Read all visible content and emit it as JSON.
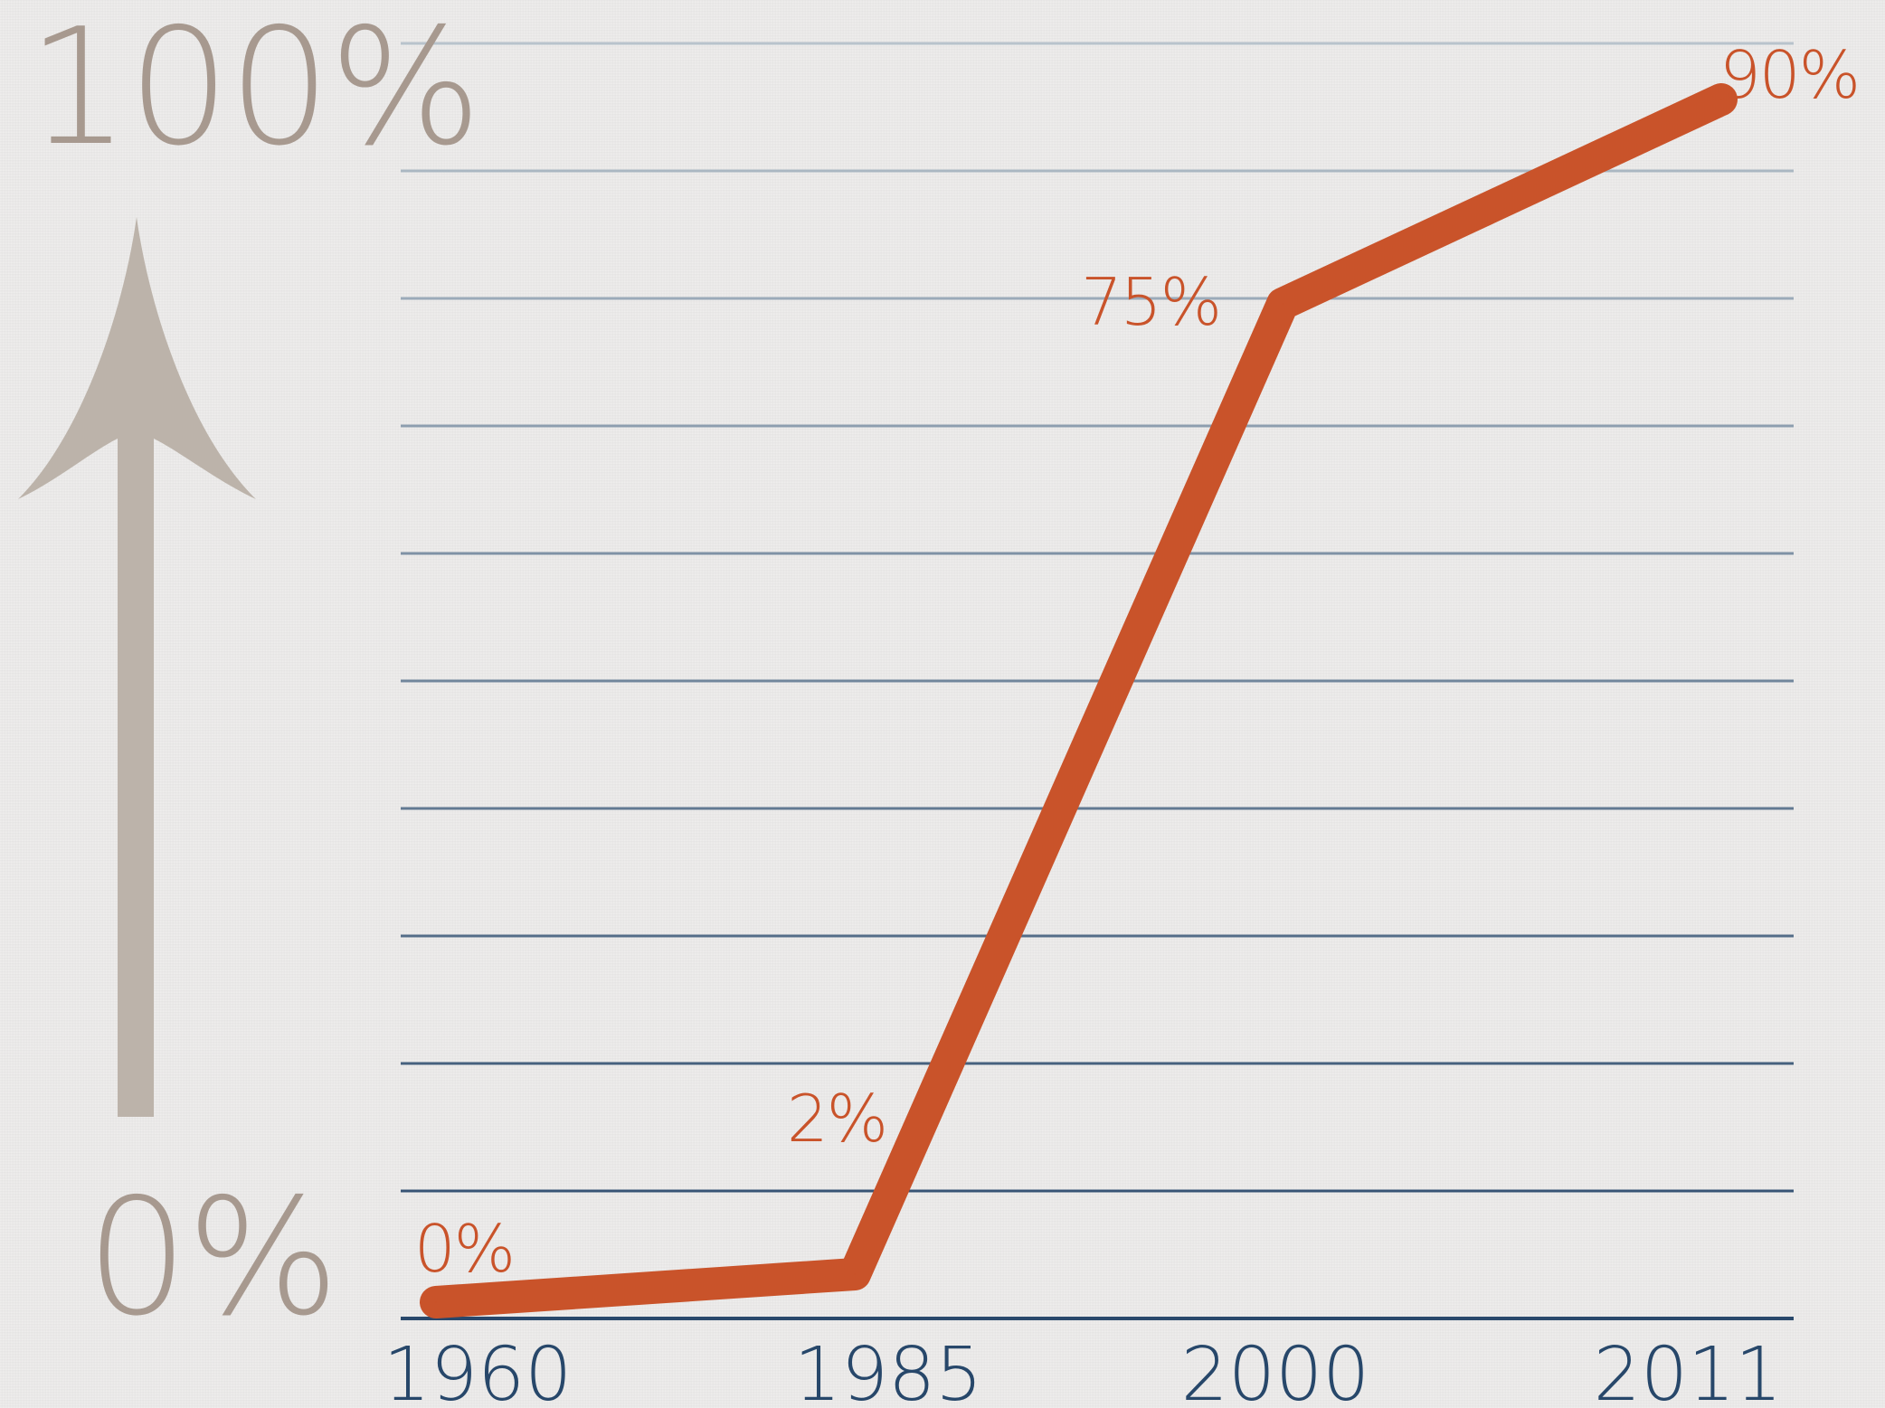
{
  "chart_data": {
    "type": "line",
    "x": [
      1960,
      1985,
      2000,
      2011
    ],
    "values": [
      0,
      2,
      75,
      90
    ],
    "data_labels": [
      "0%",
      "2%",
      "75%",
      "90%"
    ],
    "xtick_labels": [
      "1960",
      "1985",
      "2000",
      "2011"
    ],
    "y_range_labels": {
      "top": "100%",
      "bottom": "0%"
    },
    "ylim": [
      0,
      100
    ],
    "grid": true,
    "colors": {
      "line": "#c9532a",
      "labels": "#c9532a",
      "axis_text": "#a7998f",
      "arrow": "#bcb3aa",
      "grid_top": "#b8c3cc",
      "grid_bottom": "#29486b",
      "tick_text": "#27476a"
    }
  },
  "icons": {
    "y_axis_arrow": "up-arrow-icon"
  }
}
